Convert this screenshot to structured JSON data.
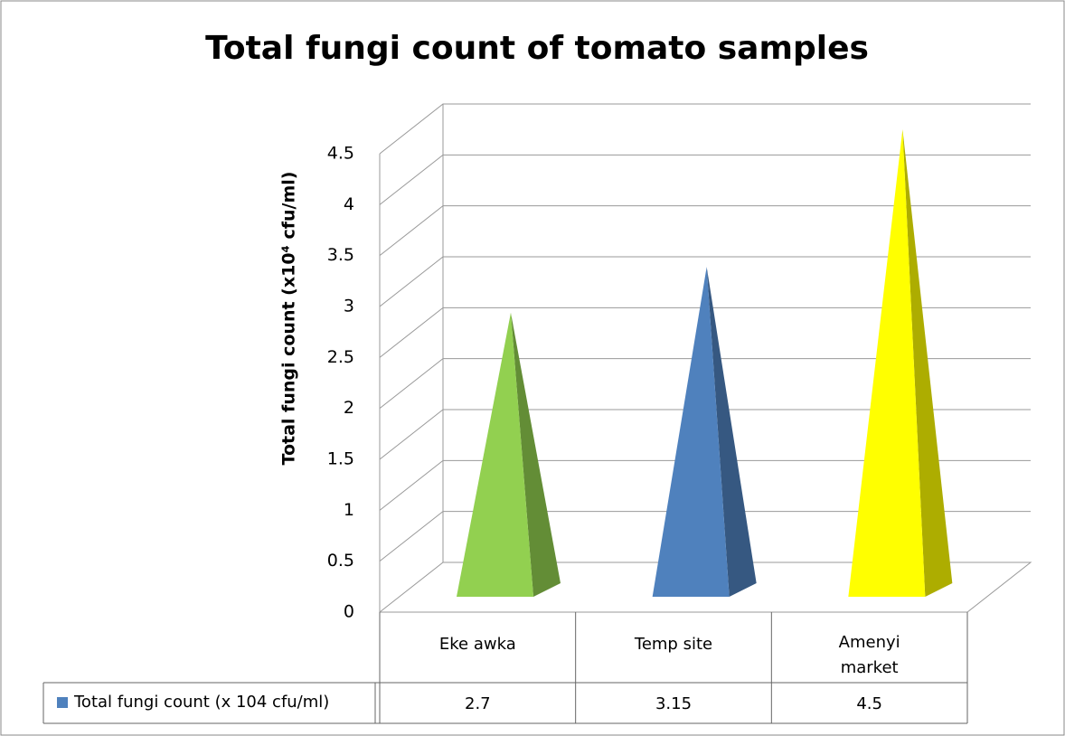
{
  "chart_data": {
    "type": "pyramid3d",
    "title": "Total fungi count of tomato samples",
    "y_label": "Total fungi count (x10⁴ cfu/ml)",
    "categories": [
      "Eke awka",
      "Temp site",
      "Amenyi market"
    ],
    "series": [
      {
        "name": "Total fungi count (x 104 cfu/ml)",
        "color": "#4f81bd",
        "colors": [
          "#92d050",
          "#4f81bd",
          "#ffff00"
        ],
        "values": [
          2.7,
          3.15,
          4.5
        ]
      }
    ],
    "ylim": [
      0,
      4.5
    ],
    "yticks": [
      0,
      0.5,
      1,
      1.5,
      2,
      2.5,
      3,
      3.5,
      4,
      4.5
    ],
    "grid": true,
    "data_table": true
  }
}
